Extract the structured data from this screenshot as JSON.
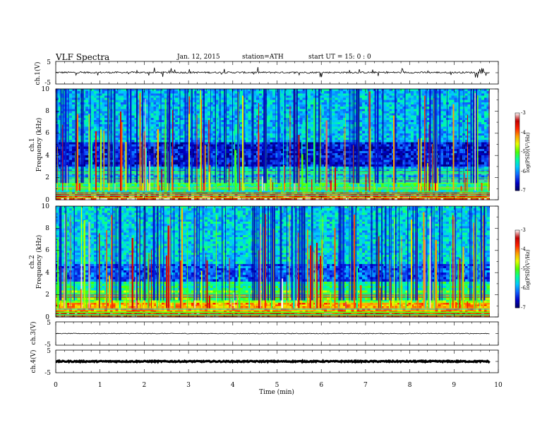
{
  "chart_data": {
    "type": "heatmap",
    "header": {
      "title": "VLF  Spectra",
      "date": "Jan.  12,  2015",
      "station": "station=ATH",
      "start": "start  UT  =    15: 0   : 0"
    },
    "time_axis": {
      "label": "Time  (min)",
      "range": [
        0,
        10
      ],
      "ticks": [
        "0",
        "1",
        "2",
        "3",
        "4",
        "5",
        "6",
        "7",
        "8",
        "9",
        "10"
      ],
      "data_end_min": 9.8
    },
    "waveforms": [
      {
        "label": "ch.1(V)",
        "ylim": [
          -5,
          5
        ],
        "ticks": [
          "5",
          "-5"
        ],
        "baseline": 0.1,
        "noise": 0.35,
        "spikes": true
      },
      {
        "label": "ch.3(V)",
        "ylim": [
          -5,
          5
        ],
        "ticks": [
          "5",
          "-5"
        ],
        "baseline": 0.0,
        "noise": 0.15,
        "spikes": false
      },
      {
        "label": "ch.4(V)",
        "ylim": [
          -5,
          5
        ],
        "ticks": [
          "5",
          "-5"
        ],
        "baseline": 0.0,
        "noise": 0.25,
        "spikes": false,
        "thick": true
      }
    ],
    "spectrograms": [
      {
        "channel_label": "ch.1",
        "ylabel": "Frequency  (kHz)",
        "ylim": [
          0,
          10
        ],
        "yticks": [
          "0",
          "2",
          "4",
          "6",
          "8",
          "10"
        ],
        "colorbar": {
          "label": "log(PSD)(V²/Hz)",
          "range": [
            -7,
            -3
          ],
          "ticks": [
            "-3",
            "-4",
            "-5",
            "-6",
            "-7"
          ]
        },
        "bands": [
          {
            "f": [
              0,
              0.3
            ],
            "level": -3.4
          },
          {
            "f": [
              0.3,
              0.7
            ],
            "level": -3.8
          },
          {
            "f": [
              0.7,
              1.6
            ],
            "level": -5.4
          },
          {
            "f": [
              1.6,
              3.0
            ],
            "level": -5.9
          },
          {
            "f": [
              3.0,
              5.2
            ],
            "level": -6.5
          },
          {
            "f": [
              5.2,
              10.0
            ],
            "level": -5.8
          }
        ]
      },
      {
        "channel_label": "ch.2",
        "ylabel": "Frequency  (kHz)",
        "ylim": [
          0,
          10
        ],
        "yticks": [
          "0",
          "2",
          "4",
          "6",
          "8",
          "10"
        ],
        "colorbar": {
          "label": "log(PSD)(V²/Hz)",
          "range": [
            -7,
            -3
          ],
          "ticks": [
            "-3",
            "-4",
            "-5",
            "-6",
            "-7"
          ]
        },
        "bands": [
          {
            "f": [
              0,
              0.4
            ],
            "level": -3.6
          },
          {
            "f": [
              0.4,
              1.3
            ],
            "level": -4.2
          },
          {
            "f": [
              1.3,
              2.4
            ],
            "level": -5.0
          },
          {
            "f": [
              2.4,
              3.2
            ],
            "level": -5.4
          },
          {
            "f": [
              3.2,
              4.8
            ],
            "level": -6.2
          },
          {
            "f": [
              4.8,
              10.0
            ],
            "level": -5.7
          }
        ]
      }
    ],
    "colormap": [
      "#000060",
      "#0000c8",
      "#1060ff",
      "#00c8ff",
      "#00ffa0",
      "#50ff00",
      "#e8ff00",
      "#ffa000",
      "#ff2000",
      "#c00000",
      "#ffffff"
    ]
  }
}
